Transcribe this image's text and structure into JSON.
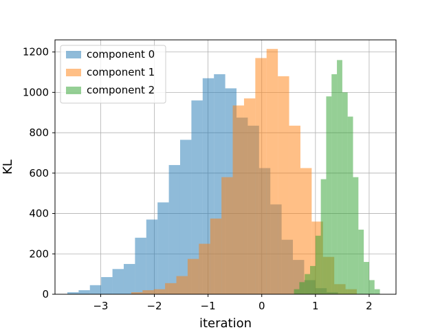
{
  "chart_data": {
    "type": "bar",
    "xlabel": "iteration",
    "ylabel": "KL",
    "xlim": [
      -3.85,
      2.5
    ],
    "ylim": [
      0,
      1260
    ],
    "xticks": [
      -3,
      -2,
      -1,
      0,
      1,
      2
    ],
    "xtick_labels": [
      "−3",
      "−2",
      "−1",
      "0",
      "1",
      "2"
    ],
    "yticks": [
      0,
      200,
      400,
      600,
      800,
      1000,
      1200
    ],
    "ytick_labels": [
      "0",
      "200",
      "400",
      "600",
      "800",
      "1000",
      "1200"
    ],
    "grid": true,
    "legend_position": "top-left",
    "series": [
      {
        "name": "component 0",
        "color": "#1f77b4",
        "opacity": 0.5,
        "bins": [
          [
            -3.62,
            -3.41,
            10
          ],
          [
            -3.41,
            -3.2,
            20
          ],
          [
            -3.2,
            -2.99,
            45
          ],
          [
            -2.99,
            -2.78,
            85
          ],
          [
            -2.78,
            -2.57,
            125
          ],
          [
            -2.57,
            -2.36,
            150
          ],
          [
            -2.36,
            -2.15,
            280
          ],
          [
            -2.15,
            -1.94,
            370
          ],
          [
            -1.94,
            -1.73,
            455
          ],
          [
            -1.73,
            -1.52,
            640
          ],
          [
            -1.52,
            -1.31,
            765
          ],
          [
            -1.31,
            -1.1,
            960
          ],
          [
            -1.1,
            -0.89,
            1070
          ],
          [
            -0.89,
            -0.68,
            1090
          ],
          [
            -0.68,
            -0.47,
            1020
          ],
          [
            -0.47,
            -0.26,
            875
          ],
          [
            -0.26,
            -0.05,
            835
          ],
          [
            -0.05,
            0.16,
            625
          ],
          [
            0.16,
            0.37,
            445
          ],
          [
            0.37,
            0.58,
            270
          ],
          [
            0.58,
            0.79,
            170
          ],
          [
            0.79,
            1.0,
            70
          ],
          [
            1.0,
            1.21,
            30
          ],
          [
            1.21,
            1.42,
            10
          ]
        ]
      },
      {
        "name": "component 1",
        "color": "#ff7f0e",
        "opacity": 0.5,
        "bins": [
          [
            -2.43,
            -2.22,
            10
          ],
          [
            -2.22,
            -2.01,
            20
          ],
          [
            -2.01,
            -1.8,
            25
          ],
          [
            -1.8,
            -1.59,
            55
          ],
          [
            -1.59,
            -1.38,
            90
          ],
          [
            -1.38,
            -1.17,
            175
          ],
          [
            -1.17,
            -0.96,
            250
          ],
          [
            -0.96,
            -0.75,
            375
          ],
          [
            -0.75,
            -0.54,
            580
          ],
          [
            -0.54,
            -0.33,
            935
          ],
          [
            -0.33,
            -0.12,
            970
          ],
          [
            -0.12,
            0.09,
            1170
          ],
          [
            0.09,
            0.3,
            1215
          ],
          [
            0.3,
            0.51,
            1080
          ],
          [
            0.51,
            0.72,
            835
          ],
          [
            0.72,
            0.93,
            625
          ],
          [
            0.93,
            1.14,
            360
          ],
          [
            1.14,
            1.35,
            185
          ],
          [
            1.35,
            1.56,
            50
          ],
          [
            1.56,
            1.77,
            25
          ]
        ]
      },
      {
        "name": "component 2",
        "color": "#2ca02c",
        "opacity": 0.5,
        "bins": [
          [
            0.6,
            0.7,
            25
          ],
          [
            0.7,
            0.8,
            60
          ],
          [
            0.8,
            0.9,
            100
          ],
          [
            0.9,
            1.0,
            140
          ],
          [
            1.0,
            1.1,
            290
          ],
          [
            1.1,
            1.2,
            570
          ],
          [
            1.2,
            1.3,
            980
          ],
          [
            1.3,
            1.4,
            1090
          ],
          [
            1.4,
            1.5,
            1160
          ],
          [
            1.5,
            1.6,
            1000
          ],
          [
            1.6,
            1.7,
            880
          ],
          [
            1.7,
            1.8,
            580
          ],
          [
            1.8,
            1.9,
            320
          ],
          [
            1.9,
            2.0,
            160
          ],
          [
            2.0,
            2.1,
            70
          ],
          [
            2.1,
            2.2,
            25
          ]
        ]
      }
    ]
  }
}
